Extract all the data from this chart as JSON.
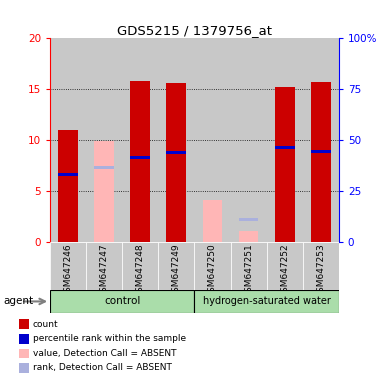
{
  "title": "GDS5215 / 1379756_at",
  "samples": [
    "GSM647246",
    "GSM647247",
    "GSM647248",
    "GSM647249",
    "GSM647250",
    "GSM647251",
    "GSM647252",
    "GSM647253"
  ],
  "red_bars": [
    11.0,
    0,
    15.8,
    15.6,
    0,
    0,
    15.2,
    15.7
  ],
  "blue_markers": [
    6.6,
    0,
    8.3,
    8.8,
    0,
    0,
    9.3,
    8.9
  ],
  "pink_bars": [
    0,
    9.9,
    0,
    0,
    4.1,
    1.1,
    0,
    0
  ],
  "lavender_markers": [
    0,
    7.3,
    0,
    0,
    0,
    2.2,
    0,
    0
  ],
  "ylim_left": [
    0,
    20
  ],
  "ylim_right": [
    0,
    100
  ],
  "yticks_left": [
    0,
    5,
    10,
    15,
    20
  ],
  "yticks_right": [
    0,
    25,
    50,
    75,
    100
  ],
  "ytick_labels_right": [
    "0",
    "25",
    "50",
    "75",
    "100%"
  ],
  "red_color": "#cc0000",
  "blue_color": "#0000cc",
  "pink_color": "#ffb6b6",
  "lavender_color": "#aab0dd",
  "col_bg_color": "#c8c8c8",
  "control_color": "#aaddaa",
  "hw_color": "#aaddaa",
  "bar_width": 0.55,
  "blue_bar_height": 0.3,
  "agent_label": "agent",
  "control_label": "control",
  "hw_label": "hydrogen-saturated water",
  "legend_items": [
    {
      "color": "#cc0000",
      "label": "count"
    },
    {
      "color": "#0000cc",
      "label": "percentile rank within the sample"
    },
    {
      "color": "#ffb6b6",
      "label": "value, Detection Call = ABSENT"
    },
    {
      "color": "#aab0dd",
      "label": "rank, Detection Call = ABSENT"
    }
  ]
}
